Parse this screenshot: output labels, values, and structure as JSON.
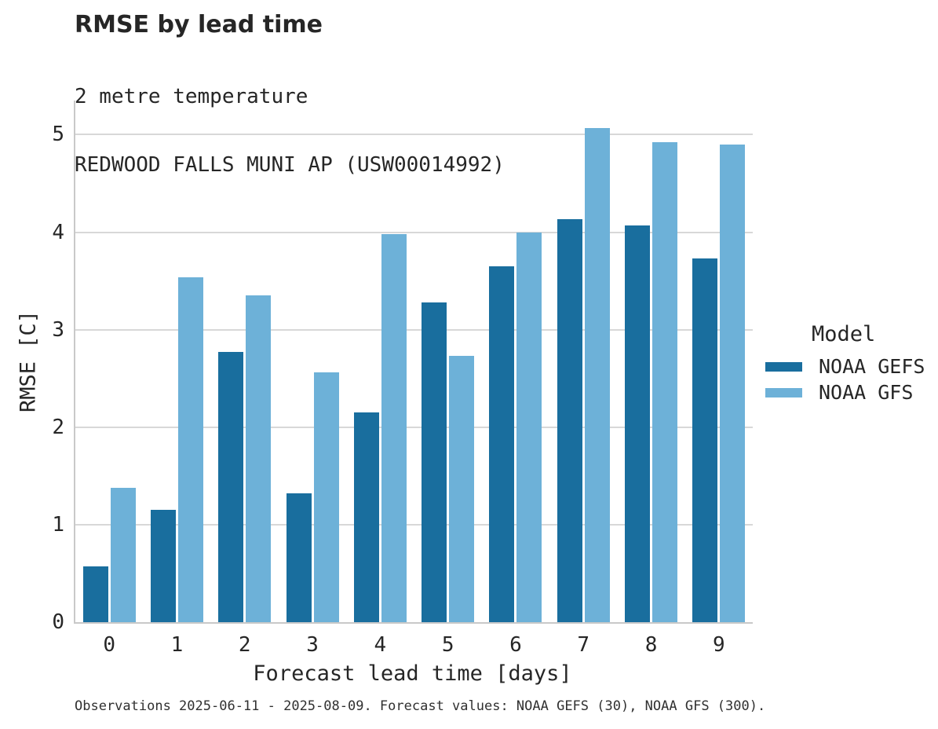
{
  "caption": {
    "text": "Observations 2025-06-11 - 2025-08-09. Forecast values: NOAA GEFS (30), NOAA GFS (300)."
  },
  "chart_data": {
    "type": "bar",
    "title": "RMSE by lead time",
    "subtitle_lines": [
      "2 metre temperature",
      "REDWOOD FALLS MUNI AP (USW00014992)"
    ],
    "categories": [
      "0",
      "1",
      "2",
      "3",
      "4",
      "5",
      "6",
      "7",
      "8",
      "9"
    ],
    "series": [
      {
        "name": "NOAA GEFS",
        "color": "#196e9e",
        "values": [
          0.57,
          1.15,
          2.77,
          1.32,
          2.15,
          3.28,
          3.65,
          4.13,
          4.07,
          3.73
        ]
      },
      {
        "name": "NOAA GFS",
        "color": "#6db1d8",
        "values": [
          1.38,
          3.54,
          3.35,
          2.56,
          3.98,
          2.73,
          4.0,
          5.07,
          4.92,
          4.9
        ]
      }
    ],
    "xlabel": "Forecast lead time [days]",
    "ylabel": "RMSE [C]",
    "ylim": [
      0,
      5.35
    ],
    "yticks": [
      0,
      1,
      2,
      3,
      4,
      5
    ],
    "grid": "horizontal",
    "legend": {
      "title": "Model",
      "position": "right"
    },
    "colors": {
      "grid": "#d8d8d8",
      "spine": "#c9c9c9",
      "text": "#262626"
    }
  }
}
